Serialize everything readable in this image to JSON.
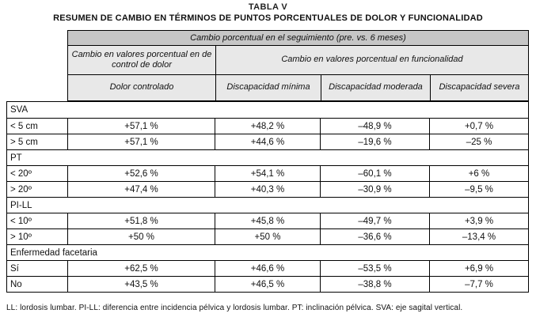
{
  "title": "TABLA V",
  "subtitle": "RESUMEN DE CAMBIO EN TÉRMINOS DE PUNTOS PORCENTUALES DE DOLOR Y FUNCIONALIDAD",
  "header": {
    "band1": "Cambio porcentual en el seguimiento (pre. vs. 6 meses)",
    "band2_left": "Cambio en valores porcentual en de control de dolor",
    "band2_right": "Cambio en valores porcentual en  funcionalidad",
    "col_headers": [
      "Dolor controlado",
      "Discapacidad mínima",
      "Discapacidad moderada",
      "Discapacidad severa"
    ]
  },
  "sections": [
    {
      "label": "SVA",
      "rows": [
        {
          "label": "< 5 cm",
          "values": [
            "+57,1 %",
            "+48,2 %",
            "–48,9 %",
            "+0,7 %"
          ]
        },
        {
          "label": "> 5 cm",
          "values": [
            "+57,1 %",
            "+44,6 %",
            "–19,6 %",
            "–25 %"
          ]
        }
      ]
    },
    {
      "label": "PT",
      "rows": [
        {
          "label": "< 20º",
          "values": [
            "+52,6 %",
            "+54,1 %",
            "–60,1 %",
            "+6 %"
          ]
        },
        {
          "label": "> 20º",
          "values": [
            "+47,4 %",
            "+40,3 %",
            "–30,9 %",
            "–9,5 %"
          ]
        }
      ]
    },
    {
      "label": "PI-LL",
      "rows": [
        {
          "label": "< 10º",
          "values": [
            "+51,8 %",
            "+45,8 %",
            "–49,7 %",
            "+3,9 %"
          ]
        },
        {
          "label": "> 10º",
          "values": [
            "+50 %",
            "+50 %",
            "–36,6 %",
            "–13,4 %"
          ]
        }
      ]
    },
    {
      "label": "Enfermedad facetaria",
      "rows": [
        {
          "label": "Sí",
          "values": [
            "+62,5 %",
            "+46,6 %",
            "–53,5 %",
            "+6,9 %"
          ]
        },
        {
          "label": "No",
          "values": [
            "+43,5 %",
            "+46,5 %",
            "–38,8 %",
            "–7,7 %"
          ]
        }
      ]
    }
  ],
  "footnote": "LL: lordosis lumbar. PI-LL: diferencia entre incidencia pélvica y lordosis lumbar. PT: inclinación pélvica. SVA: eje sagital vertical.",
  "colors": {
    "band1_bg": "#c6c6c6",
    "band23_bg": "#e8e8e8",
    "border": "#000000",
    "page_bg": "#ffffff"
  }
}
